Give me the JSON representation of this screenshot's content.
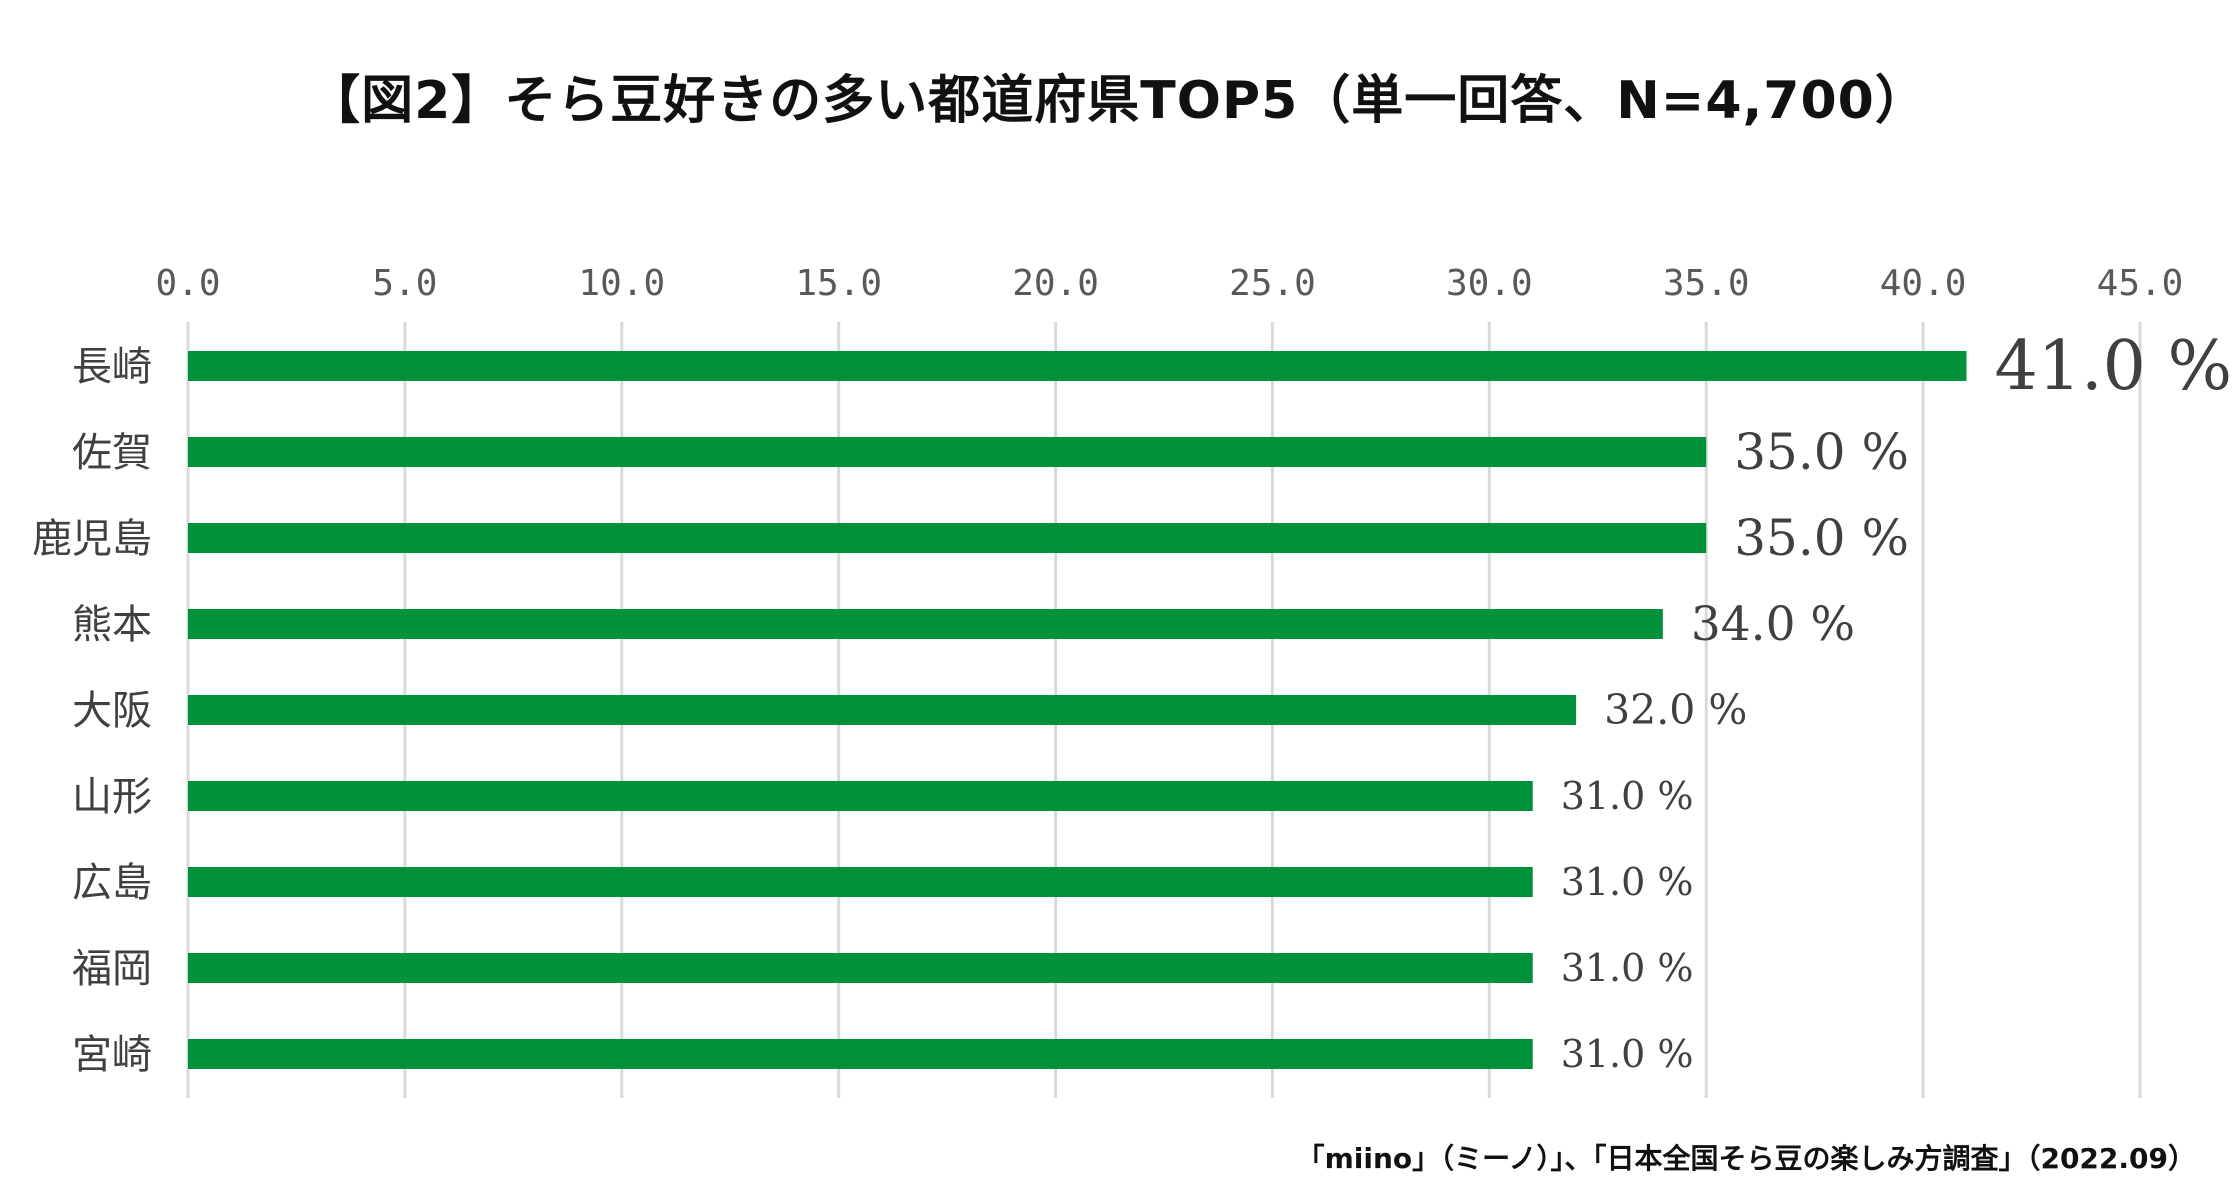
{
  "title": "【図2】そら豆好きの多い都道府県TOP5（単一回答、N=4,700）",
  "source": "「miino」（ミーノ）」、「日本全国そら豆の楽しみ方調査」（2022.09）",
  "colors": {
    "bar": "#00913A",
    "grid": "#D9D9D9",
    "tick_text": "#595959",
    "label_text": "#404040"
  },
  "chart_data": {
    "type": "bar",
    "orientation": "horizontal",
    "title": "【図2】そら豆好きの多い都道府県TOP5（単一回答、N=4,700）",
    "xlabel": "",
    "ylabel": "",
    "xlim": [
      0,
      45
    ],
    "x_ticks": [
      "0.0",
      "5.0",
      "10.0",
      "15.0",
      "20.0",
      "25.0",
      "30.0",
      "35.0",
      "40.0",
      "45.0"
    ],
    "x_axis_position": "top",
    "grid": true,
    "legend": "none",
    "categories": [
      "長崎",
      "佐賀",
      "鹿児島",
      "熊本",
      "大阪",
      "山形",
      "広島",
      "福岡",
      "宮崎"
    ],
    "values": [
      41.0,
      35.0,
      35.0,
      34.0,
      32.0,
      31.0,
      31.0,
      31.0,
      31.0
    ],
    "data_labels": [
      "41.0 %",
      "35.0 %",
      "35.0 %",
      "34.0 %",
      "32.0 %",
      "31.0 %",
      "31.0 %",
      "31.0 %",
      "31.0 %"
    ]
  }
}
